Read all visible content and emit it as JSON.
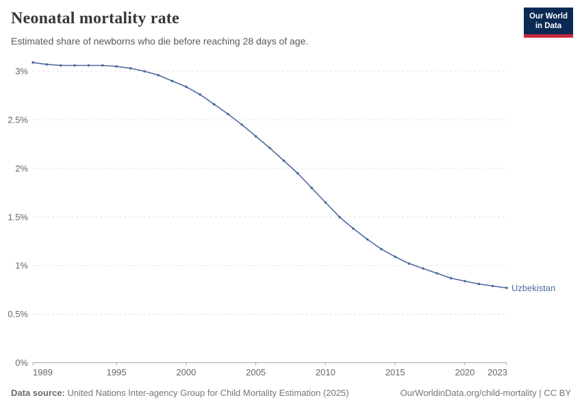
{
  "header": {
    "title": "Neonatal mortality rate",
    "subtitle": "Estimated share of newborns who die before reaching 28 days of age.",
    "logo": {
      "line1": "Our World",
      "line2": "in Data"
    }
  },
  "chart_data": {
    "type": "line",
    "title": "Neonatal mortality rate",
    "subtitle": "Estimated share of newborns who die before reaching 28 days of age.",
    "xlim": [
      1989,
      2023
    ],
    "ylim": [
      0,
      3.15
    ],
    "grid": "horizontal-dashed",
    "legend_position": "end-of-line-label",
    "x_ticks": [
      1989,
      1995,
      2000,
      2005,
      2010,
      2015,
      2020,
      2023
    ],
    "y_ticks": [
      {
        "value": 0,
        "label": "0%"
      },
      {
        "value": 0.5,
        "label": "0.5%"
      },
      {
        "value": 1,
        "label": "1%"
      },
      {
        "value": 1.5,
        "label": "1.5%"
      },
      {
        "value": 2,
        "label": "2%"
      },
      {
        "value": 2.5,
        "label": "2.5%"
      },
      {
        "value": 3,
        "label": "3%"
      }
    ],
    "series": [
      {
        "name": "Uzbekistan",
        "color": "#4C6A9C",
        "x": [
          1989,
          1990,
          1991,
          1992,
          1993,
          1994,
          1995,
          1996,
          1997,
          1998,
          1999,
          2000,
          2001,
          2002,
          2003,
          2004,
          2005,
          2006,
          2007,
          2008,
          2009,
          2010,
          2011,
          2012,
          2013,
          2014,
          2015,
          2016,
          2017,
          2018,
          2019,
          2020,
          2021,
          2022,
          2023
        ],
        "values": [
          3.09,
          3.07,
          3.06,
          3.06,
          3.06,
          3.06,
          3.05,
          3.03,
          3.0,
          2.96,
          2.9,
          2.84,
          2.76,
          2.66,
          2.56,
          2.45,
          2.33,
          2.21,
          2.08,
          1.95,
          1.8,
          1.65,
          1.5,
          1.38,
          1.27,
          1.17,
          1.09,
          1.02,
          0.97,
          0.92,
          0.87,
          0.84,
          0.81,
          0.79,
          0.77
        ]
      }
    ]
  },
  "footer": {
    "source_label": "Data source:",
    "source_text": " United Nations Inter-agency Group for Child Mortality Estimation (2025)",
    "link_text": "OurWorldinData.org/child-mortality | CC BY"
  },
  "colors": {
    "line": "#4C6A9C",
    "logo_bg": "#0a2953",
    "logo_accent": "#c52a3b",
    "gridline": "#e0e0e0",
    "axis": "#a5a5a5"
  }
}
